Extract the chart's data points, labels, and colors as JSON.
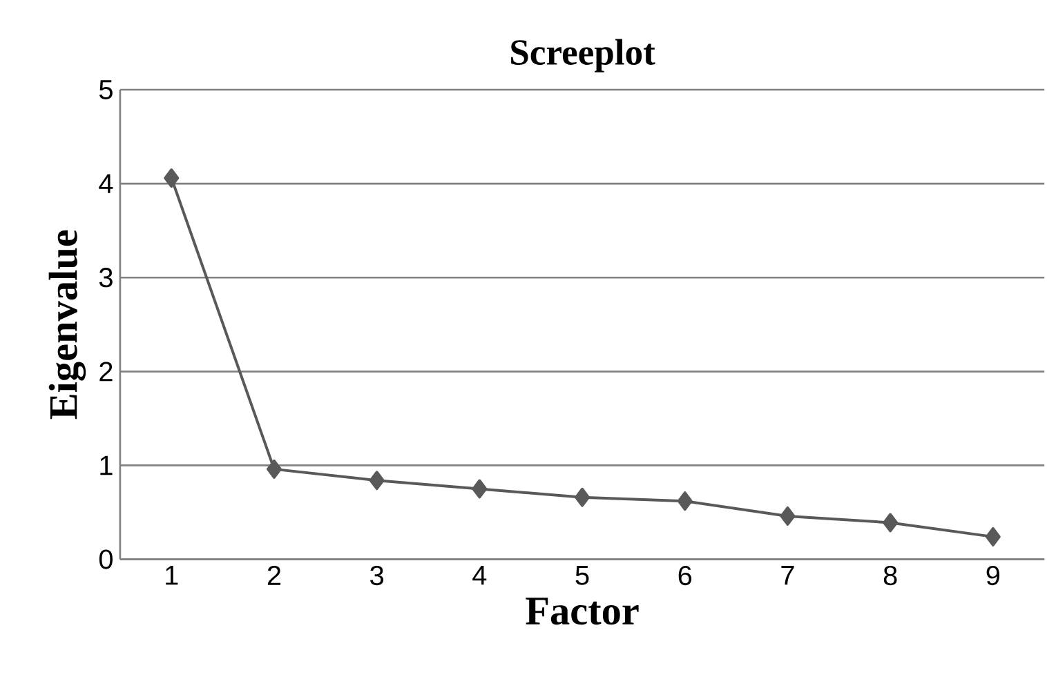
{
  "chart_data": {
    "type": "line",
    "title": "Screeplot",
    "xlabel": "Factor",
    "ylabel": "Eigenvalue",
    "categories": [
      "1",
      "2",
      "3",
      "4",
      "5",
      "6",
      "7",
      "8",
      "9"
    ],
    "values": [
      4.06,
      0.96,
      0.84,
      0.75,
      0.66,
      0.62,
      0.46,
      0.39,
      0.24
    ],
    "color": "#595959",
    "marker": "diamond",
    "line_style": "solid",
    "ylim": [
      0,
      5
    ],
    "yticks": [
      0,
      1,
      2,
      3,
      4,
      5
    ],
    "grid": "y"
  }
}
